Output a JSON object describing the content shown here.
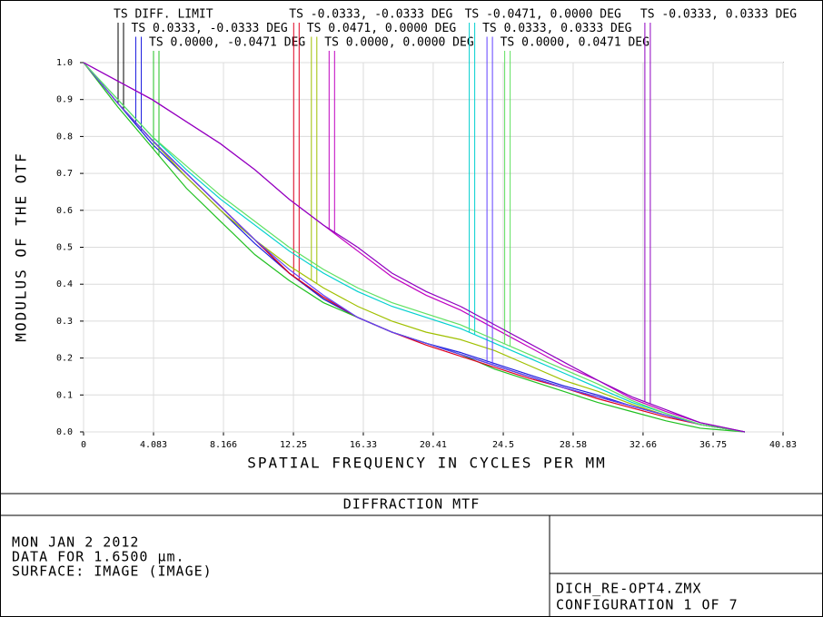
{
  "chart_data": {
    "type": "line",
    "x_label": "SPATIAL FREQUENCY IN CYCLES PER MM",
    "y_label": "MODULUS OF THE OTF",
    "x": [
      0,
      2,
      4,
      6,
      8,
      10,
      12,
      14,
      16,
      18,
      20,
      22,
      24,
      26,
      28,
      30,
      32,
      34,
      36,
      38.6
    ],
    "xlim": [
      0,
      40.83
    ],
    "xticks": [
      0,
      4.083,
      8.166,
      12.25,
      16.33,
      20.41,
      24.5,
      28.58,
      32.66,
      36.75,
      40.83
    ],
    "ylim": [
      0,
      1
    ],
    "yticks": [
      {
        "value": 0,
        "label": "0.0"
      },
      0.1,
      0.2,
      0.3,
      0.4,
      0.5,
      0.6,
      0.7,
      0.8,
      0.9,
      {
        "value": 1,
        "label": "1.0"
      }
    ],
    "grid": true,
    "series": [
      {
        "name": "TS DIFF. LIMIT",
        "color": "#000000",
        "values": [
          1,
          0.89,
          0.79,
          0.7,
          0.61,
          0.52,
          0.43,
          0.36,
          0.31,
          0.27,
          0.24,
          0.21,
          0.18,
          0.15,
          0.12,
          0.095,
          0.07,
          0.045,
          0.02,
          0
        ]
      },
      {
        "name": "TS 0.0333, -0.0333 DEG",
        "color": "#2020e0",
        "values": [
          1,
          0.89,
          0.78,
          0.69,
          0.6,
          0.51,
          0.43,
          0.36,
          0.31,
          0.27,
          0.24,
          0.215,
          0.185,
          0.155,
          0.125,
          0.1,
          0.07,
          0.045,
          0.02,
          0
        ]
      },
      {
        "name": "TS 0.0000, -0.0471 DEG",
        "color": "#20c020",
        "values": [
          1,
          0.88,
          0.77,
          0.66,
          0.57,
          0.48,
          0.41,
          0.35,
          0.31,
          0.27,
          0.24,
          0.21,
          0.17,
          0.14,
          0.11,
          0.08,
          0.055,
          0.03,
          0.01,
          0
        ]
      },
      {
        "name": "TS -0.0333, -0.0333 DEG",
        "color": "#e00020",
        "values": [
          1,
          0.89,
          0.79,
          0.7,
          0.61,
          0.52,
          0.43,
          0.365,
          0.31,
          0.27,
          0.235,
          0.205,
          0.175,
          0.145,
          0.12,
          0.09,
          0.065,
          0.04,
          0.02,
          0
        ]
      },
      {
        "name": "TS 0.0471, 0.0000 DEG",
        "color": "#a0c000",
        "values": [
          1,
          0.89,
          0.79,
          0.69,
          0.6,
          0.52,
          0.45,
          0.39,
          0.34,
          0.3,
          0.27,
          0.25,
          0.22,
          0.18,
          0.14,
          0.11,
          0.075,
          0.045,
          0.02,
          0
        ]
      },
      {
        "name": "TS 0.0000, 0.0000 DEG",
        "color": "#c000c0",
        "values": [
          1,
          0.95,
          0.9,
          0.84,
          0.78,
          0.71,
          0.63,
          0.56,
          0.49,
          0.42,
          0.37,
          0.33,
          0.28,
          0.23,
          0.18,
          0.14,
          0.09,
          0.055,
          0.025,
          0
        ]
      },
      {
        "name": "TS -0.0471, 0.0000 DEG",
        "color": "#00d0d0",
        "values": [
          1,
          0.9,
          0.8,
          0.71,
          0.63,
          0.56,
          0.49,
          0.43,
          0.38,
          0.34,
          0.31,
          0.28,
          0.24,
          0.2,
          0.16,
          0.12,
          0.08,
          0.05,
          0.02,
          0
        ]
      },
      {
        "name": "TS 0.0333, 0.0333 DEG",
        "color": "#6040ff",
        "values": [
          1,
          0.89,
          0.79,
          0.7,
          0.61,
          0.52,
          0.44,
          0.37,
          0.31,
          0.27,
          0.24,
          0.21,
          0.18,
          0.15,
          0.12,
          0.095,
          0.07,
          0.045,
          0.02,
          0
        ]
      },
      {
        "name": "TS 0.0000, 0.0471 DEG",
        "color": "#60e060",
        "values": [
          1,
          0.9,
          0.8,
          0.72,
          0.64,
          0.57,
          0.5,
          0.44,
          0.39,
          0.35,
          0.32,
          0.29,
          0.25,
          0.21,
          0.17,
          0.13,
          0.085,
          0.05,
          0.02,
          0
        ]
      },
      {
        "name": "TS -0.0333, 0.0333 DEG",
        "color": "#9000c0",
        "values": [
          1,
          0.95,
          0.9,
          0.84,
          0.78,
          0.71,
          0.63,
          0.56,
          0.5,
          0.43,
          0.38,
          0.34,
          0.29,
          0.24,
          0.19,
          0.14,
          0.095,
          0.06,
          0.025,
          0
        ]
      }
    ]
  },
  "panel": {
    "title": "DIFFRACTION MTF",
    "notes": [
      "MON JAN 2 2012",
      "DATA FOR 1.6500 μm.",
      "SURFACE: IMAGE (IMAGE)"
    ],
    "file": "DICH_RE-OPT4.ZMX",
    "configuration": "CONFIGURATION 1 OF 7"
  }
}
